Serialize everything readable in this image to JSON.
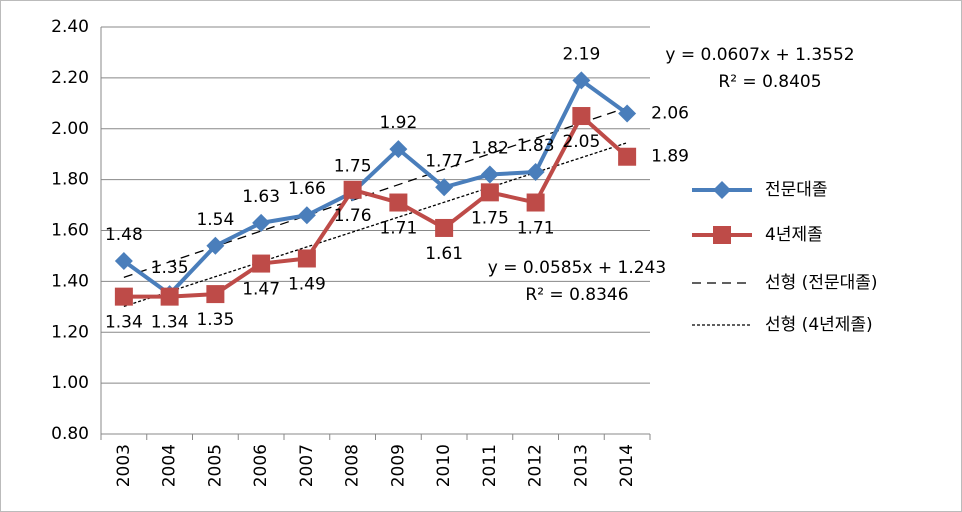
{
  "chart_data": {
    "type": "line",
    "categories": [
      "2003",
      "2004",
      "2005",
      "2006",
      "2007",
      "2008",
      "2009",
      "2010",
      "2011",
      "2012",
      "2013",
      "2014"
    ],
    "series": [
      {
        "name": "전문대졸",
        "color": "#4a7ebb",
        "marker": "diamond",
        "values": [
          1.48,
          1.35,
          1.54,
          1.63,
          1.66,
          1.75,
          1.92,
          1.77,
          1.82,
          1.83,
          2.19,
          2.06
        ]
      },
      {
        "name": "4년제졸",
        "color": "#be4b48",
        "marker": "square",
        "values": [
          1.34,
          1.34,
          1.35,
          1.47,
          1.49,
          1.76,
          1.71,
          1.61,
          1.75,
          1.71,
          2.05,
          1.89
        ]
      }
    ],
    "trendlines": [
      {
        "name": "선형 (전문대졸)",
        "style": "dashed",
        "slope": 0.0607,
        "intercept": 1.3552,
        "equation": "y = 0.0607x + 1.3552",
        "r_squared": "R² = 0.8405"
      },
      {
        "name": "선형 (4년제졸)",
        "style": "dotted",
        "slope": 0.0585,
        "intercept": 1.243,
        "equation": "y = 0.0585x + 1.243",
        "r_squared": "R² = 0.8346"
      }
    ],
    "ylim": [
      0.8,
      2.4
    ],
    "yticks": [
      {
        "value": 0.8,
        "label": "0.80"
      },
      {
        "value": 1.0,
        "label": "1.00"
      },
      {
        "value": 1.2,
        "label": "1.20"
      },
      {
        "value": 1.4,
        "label": "1.40"
      },
      {
        "value": 1.6,
        "label": "1.60"
      },
      {
        "value": 1.8,
        "label": "1.80"
      },
      {
        "value": 2.0,
        "label": "2.00"
      },
      {
        "value": 2.2,
        "label": "2.20"
      },
      {
        "value": 2.4,
        "label": "2.40"
      }
    ],
    "grid": true,
    "legend": "right"
  }
}
